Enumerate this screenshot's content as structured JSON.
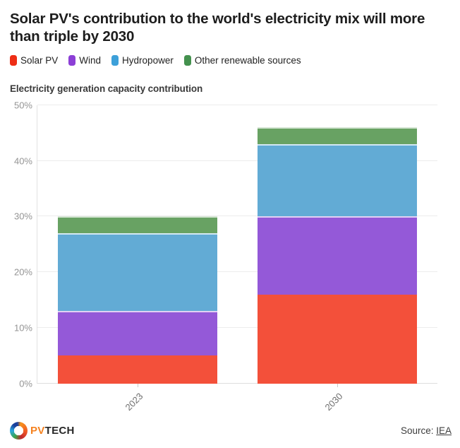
{
  "header": {
    "title": "Solar PV's contribution to the world's electricity mix will more than triple by 2030"
  },
  "legend": {
    "items": [
      {
        "label": "Solar PV",
        "color": "#ee2e15"
      },
      {
        "label": "Wind",
        "color": "#8c3fd6"
      },
      {
        "label": "Hydropower",
        "color": "#3da0d9"
      },
      {
        "label": "Other renewable sources",
        "color": "#44914e"
      }
    ]
  },
  "chart_data": {
    "type": "bar",
    "stacked": true,
    "title": "Electricity generation capacity contribution",
    "categories": [
      "2023",
      "2030"
    ],
    "series": [
      {
        "name": "Solar PV",
        "color": "#f3503a",
        "values": [
          5,
          16
        ]
      },
      {
        "name": "Wind",
        "color": "#9459d8",
        "values": [
          8,
          14
        ]
      },
      {
        "name": "Hydropower",
        "color": "#62abd5",
        "values": [
          14,
          13
        ]
      },
      {
        "name": "Other renewable sources",
        "color": "#68a263",
        "values": [
          3,
          3
        ]
      }
    ],
    "totals": [
      30,
      46
    ],
    "ylim": [
      0,
      50
    ],
    "yticks": [
      0,
      10,
      20,
      30,
      40,
      50
    ],
    "ytick_suffix": "%",
    "grid": true,
    "legend_position": "top"
  },
  "footer": {
    "brand_pv": "PV",
    "brand_tech": "TECH",
    "source_label": "Source:",
    "source_link": "IEA"
  }
}
